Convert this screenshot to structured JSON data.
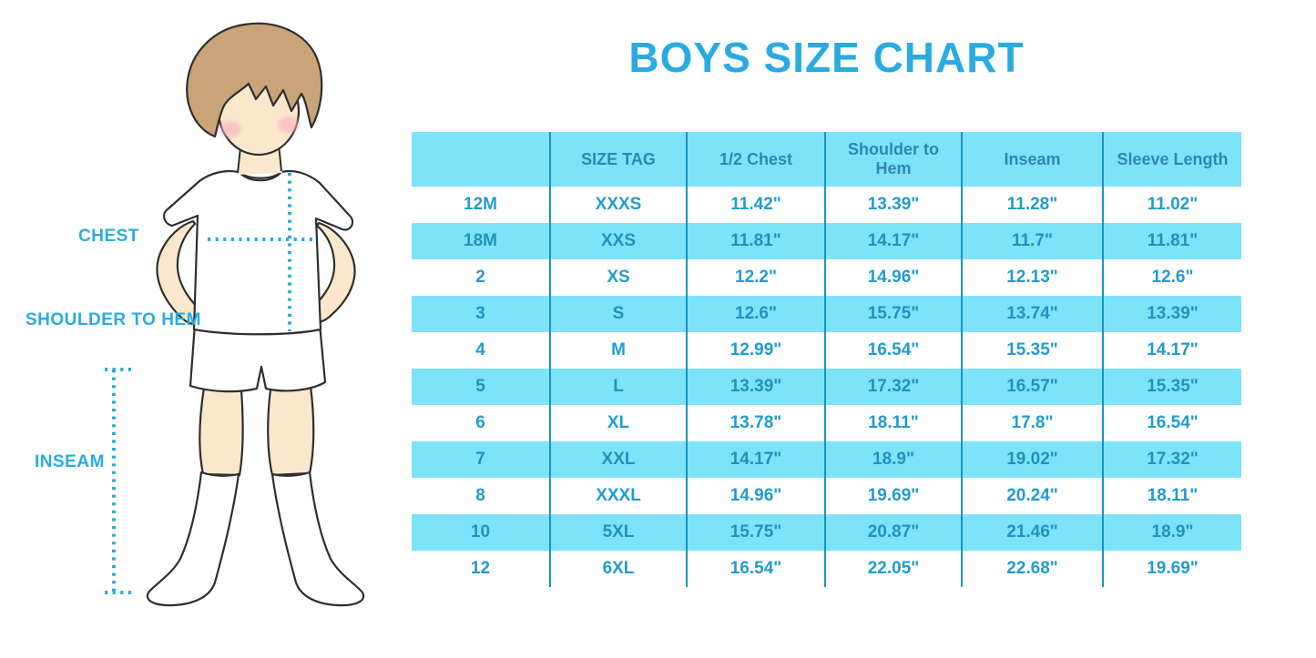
{
  "title": "BOYS SIZE CHART",
  "figure": {
    "chest_label": "CHEST",
    "shoulder_to_hem_label": "SHOULDER TO HEM",
    "inseam_label": "INSEAM"
  },
  "colors": {
    "accent_blue": "#29ABE2",
    "table_stripe": "#7DE3FB",
    "table_border": "#1A93BF",
    "header_text": "#2E87B0",
    "cell_text": "#1F9CD3",
    "hair": "#C8A478",
    "skin": "#FBE8CC",
    "blush": "#F5AEC0",
    "outline": "#2E2E2E"
  },
  "chart_data": {
    "type": "table",
    "title": "BOYS SIZE CHART",
    "units": "inches",
    "columns": [
      "",
      "SIZE TAG",
      "1/2 Chest",
      "Shoulder to Hem",
      "Inseam",
      "Sleeve Length"
    ],
    "rows": [
      [
        "12M",
        "XXXS",
        "11.42\"",
        "13.39\"",
        "11.28\"",
        "11.02\""
      ],
      [
        "18M",
        "XXS",
        "11.81\"",
        "14.17\"",
        "11.7\"",
        "11.81\""
      ],
      [
        "2",
        "XS",
        "12.2\"",
        "14.96\"",
        "12.13\"",
        "12.6\""
      ],
      [
        "3",
        "S",
        "12.6\"",
        "15.75\"",
        "13.74\"",
        "13.39\""
      ],
      [
        "4",
        "M",
        "12.99\"",
        "16.54\"",
        "15.35\"",
        "14.17\""
      ],
      [
        "5",
        "L",
        "13.39\"",
        "17.32\"",
        "16.57\"",
        "15.35\""
      ],
      [
        "6",
        "XL",
        "13.78\"",
        "18.11\"",
        "17.8\"",
        "16.54\""
      ],
      [
        "7",
        "XXL",
        "14.17\"",
        "18.9\"",
        "19.02\"",
        "17.32\""
      ],
      [
        "8",
        "XXXL",
        "14.96\"",
        "19.69\"",
        "20.24\"",
        "18.11\""
      ],
      [
        "10",
        "5XL",
        "15.75\"",
        "20.87\"",
        "21.46\"",
        "18.9\""
      ],
      [
        "12",
        "6XL",
        "16.54\"",
        "22.05\"",
        "22.68\"",
        "19.69\""
      ]
    ],
    "stripe_pattern": "alternating white / light blue, first data row white",
    "legend_position": "none",
    "grid": "vertical column separators only"
  }
}
